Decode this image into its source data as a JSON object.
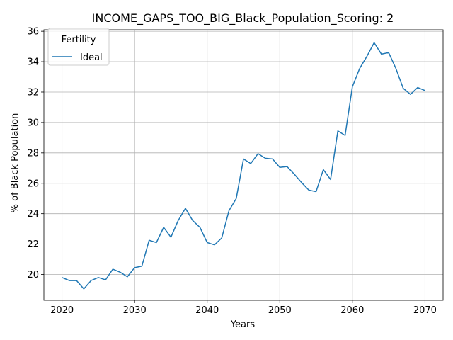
{
  "chart_data": {
    "type": "line",
    "title": "INCOME_GAPS_TOO_BIG_Black_Population_Scoring: 2",
    "xlabel": "Years",
    "ylabel": "% of Black Population",
    "xlim": [
      2017.5,
      2072.5
    ],
    "ylim": [
      18.3,
      36.1
    ],
    "xticks": [
      2020,
      2030,
      2040,
      2050,
      2060,
      2070
    ],
    "yticks": [
      20,
      22,
      24,
      26,
      28,
      30,
      32,
      34,
      36
    ],
    "grid": true,
    "legend": {
      "title": "Fertility",
      "placement": "top-left"
    },
    "series": [
      {
        "name": "Ideal",
        "color": "#1f77b4",
        "x": [
          2020,
          2021,
          2022,
          2023,
          2024,
          2025,
          2026,
          2027,
          2028,
          2029,
          2030,
          2031,
          2032,
          2033,
          2034,
          2035,
          2036,
          2037,
          2038,
          2039,
          2040,
          2041,
          2042,
          2043,
          2044,
          2045,
          2046,
          2047,
          2048,
          2049,
          2050,
          2051,
          2052,
          2053,
          2054,
          2055,
          2056,
          2057,
          2058,
          2059,
          2060,
          2061,
          2062,
          2063,
          2064,
          2065,
          2066,
          2067,
          2068,
          2069,
          2070
        ],
        "values": [
          19.8,
          19.6,
          19.6,
          19.05,
          19.6,
          19.8,
          19.65,
          20.35,
          20.15,
          19.85,
          20.45,
          20.55,
          22.25,
          22.1,
          23.1,
          22.45,
          23.55,
          24.35,
          23.55,
          23.1,
          22.1,
          21.95,
          22.4,
          24.2,
          25.0,
          27.6,
          27.3,
          27.95,
          27.65,
          27.6,
          27.05,
          27.1,
          26.6,
          26.05,
          25.55,
          25.45,
          26.9,
          26.25,
          29.45,
          29.15,
          32.35,
          33.55,
          34.35,
          35.25,
          34.5,
          34.6,
          33.55,
          32.25,
          31.85,
          32.3,
          32.1
        ]
      }
    ]
  }
}
